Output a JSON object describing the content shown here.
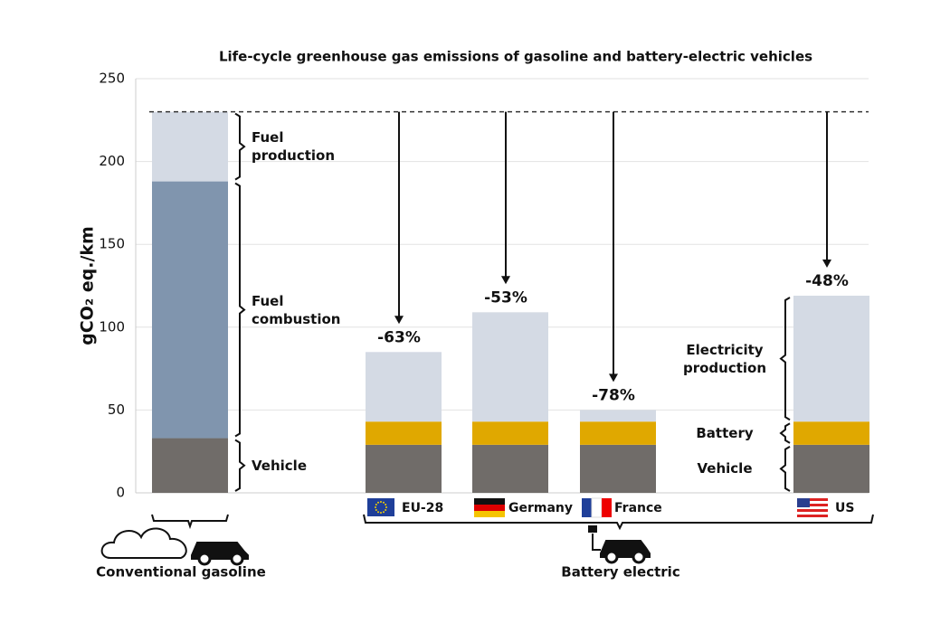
{
  "chart_data": {
    "type": "stacked-bar",
    "title": "Life-cycle greenhouse gas emissions of gasoline and battery-electric vehicles",
    "y_label": "gCO₂ eq./km",
    "categories": [
      null,
      "EU-28",
      "Germany",
      "France",
      "US"
    ],
    "groups": [
      "Conventional gasoline",
      "Battery electric"
    ],
    "series": [
      {
        "name": "Vehicle",
        "color": "#706c69",
        "values": [
          33,
          29,
          29,
          29,
          29
        ]
      },
      {
        "name": "Fuel combustion",
        "color": "#8095ae",
        "values": [
          155,
          null,
          null,
          null,
          null
        ]
      },
      {
        "name": "Fuel production",
        "color": "#d4dae4",
        "values": [
          42,
          null,
          null,
          null,
          null
        ]
      },
      {
        "name": "Battery",
        "color": "#e0a800",
        "values": [
          null,
          14,
          14,
          14,
          14
        ]
      },
      {
        "name": "Electricity production",
        "color": "#d4dae4",
        "values": [
          null,
          42,
          66,
          7,
          76
        ]
      }
    ],
    "reductions": {
      "values": [
        null,
        -63,
        -53,
        -78,
        -48
      ],
      "value_labels": [
        null,
        "-63%",
        "-53%",
        "-78%",
        "-48%"
      ]
    },
    "ylim": [
      0,
      250
    ],
    "yticks": [
      0,
      50,
      100,
      150,
      200,
      250
    ],
    "grid": true
  }
}
